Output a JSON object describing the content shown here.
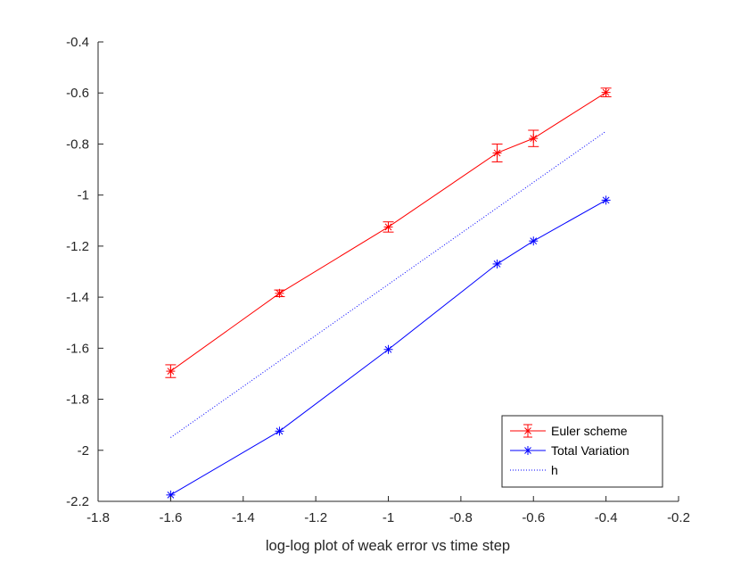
{
  "chart_data": {
    "type": "line",
    "title": "",
    "xlabel": "log-log plot of weak error vs time step",
    "ylabel": "",
    "xlim": [
      -1.8,
      -0.2
    ],
    "ylim": [
      -2.2,
      -0.4
    ],
    "xticks": [
      -1.8,
      -1.6,
      -1.4,
      -1.2,
      -1.0,
      -0.8,
      -0.6,
      -0.4,
      -0.2
    ],
    "xtick_labels": [
      "-1.8",
      "-1.6",
      "-1.4",
      "-1.2",
      "-1",
      "-0.8",
      "-0.6",
      "-0.4",
      "-0.2"
    ],
    "yticks": [
      -2.2,
      -2.0,
      -1.8,
      -1.6,
      -1.4,
      -1.2,
      -1.0,
      -0.8,
      -0.6,
      -0.4
    ],
    "ytick_labels": [
      "-2.2",
      "-2",
      "-1.8",
      "-1.6",
      "-1.4",
      "-1.2",
      "-1",
      "-0.8",
      "-0.6",
      "-0.4"
    ],
    "grid": false,
    "legend_position": "bottom-right",
    "series": [
      {
        "name": "Euler scheme",
        "color": "#ff0000",
        "line_style": "solid",
        "marker": "asterisk",
        "x": [
          -1.6,
          -1.3,
          -1.0,
          -0.7,
          -0.6,
          -0.4
        ],
        "y": [
          -1.69,
          -1.385,
          -1.125,
          -0.835,
          -0.778,
          -0.598
        ],
        "error": [
          0.025,
          0.013,
          0.02,
          0.035,
          0.032,
          0.017
        ]
      },
      {
        "name": "Total Variation",
        "color": "#0000ff",
        "line_style": "solid",
        "marker": "asterisk",
        "x": [
          -1.6,
          -1.3,
          -1.0,
          -0.7,
          -0.6,
          -0.4
        ],
        "y": [
          -2.175,
          -1.925,
          -1.605,
          -1.27,
          -1.18,
          -1.02
        ],
        "error": []
      },
      {
        "name": "h",
        "color": "#0000ff",
        "line_style": "dotted",
        "marker": "none",
        "x": [
          -1.6,
          -0.4
        ],
        "y": [
          -1.95,
          -0.75
        ],
        "error": []
      }
    ]
  }
}
